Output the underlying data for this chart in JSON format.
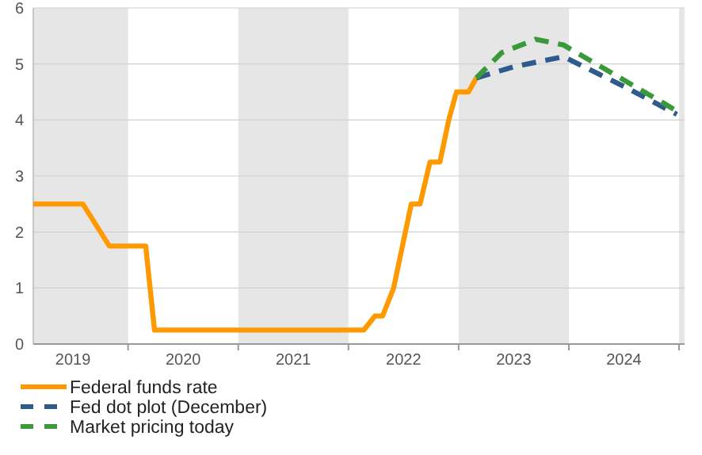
{
  "chart_data": {
    "type": "line",
    "xlim": [
      2019.14,
      2025.05
    ],
    "ylim": [
      0,
      6
    ],
    "yticks": [
      0,
      1,
      2,
      3,
      4,
      5,
      6
    ],
    "grid": "y",
    "legend": "bottom",
    "line_style": "solid",
    "marker": "none",
    "xticks": [
      {
        "value": 2020,
        "label": null
      },
      {
        "value": 2021,
        "label": null
      },
      {
        "value": 2022,
        "label": null
      },
      {
        "value": 2023,
        "label": null
      },
      {
        "value": 2024,
        "label": null
      },
      {
        "value": 2025,
        "label": null
      },
      {
        "value": 2019.5,
        "label": "2019"
      },
      {
        "value": 2020.5,
        "label": "2020"
      },
      {
        "value": 2021.5,
        "label": "2021"
      },
      {
        "value": 2022.5,
        "label": "2022"
      },
      {
        "value": 2023.5,
        "label": "2023"
      },
      {
        "value": 2024.5,
        "label": "2024"
      }
    ],
    "bands": [
      {
        "axis": "x",
        "from": 2019.14,
        "to": 2020,
        "color": "#e6e6e6"
      },
      {
        "axis": "x",
        "from": 2021,
        "to": 2022,
        "color": "#e6e6e6"
      },
      {
        "axis": "x",
        "from": 2023,
        "to": 2024,
        "color": "#e6e6e6"
      },
      {
        "axis": "x",
        "from": 2025,
        "to": 2025.05,
        "color": "#e6e6e6"
      }
    ],
    "series": [
      {
        "name": "Federal funds rate",
        "color": "#ff9900",
        "x": [
          2019.14,
          2019.59,
          2019.83,
          2020.16,
          2020.24,
          2022.14,
          2022.24,
          2022.31,
          2022.41,
          2022.57,
          2022.65,
          2022.74,
          2022.83,
          2022.91,
          2022.98,
          2023.09,
          2023.16
        ],
        "values": [
          2.5,
          2.5,
          1.75,
          1.75,
          0.25,
          0.25,
          0.5,
          0.5,
          1.0,
          2.5,
          2.5,
          3.25,
          3.25,
          4.0,
          4.5,
          4.5,
          4.75
        ]
      },
      {
        "name": "Fed dot plot (December)",
        "color": "#2f5b8c",
        "line_style": "dashed",
        "x": [
          2023.16,
          2023.5,
          2023.95,
          2024.5,
          2024.98
        ],
        "values": [
          4.75,
          4.95,
          5.13,
          4.6,
          4.1
        ]
      },
      {
        "name": "Market pricing today",
        "color": "#3a9a3a",
        "line_style": "dashed",
        "x": [
          2023.16,
          2023.39,
          2023.7,
          2023.95,
          2024.86,
          2024.98
        ],
        "values": [
          4.75,
          5.2,
          5.44,
          5.34,
          4.3,
          4.16
        ]
      }
    ]
  }
}
